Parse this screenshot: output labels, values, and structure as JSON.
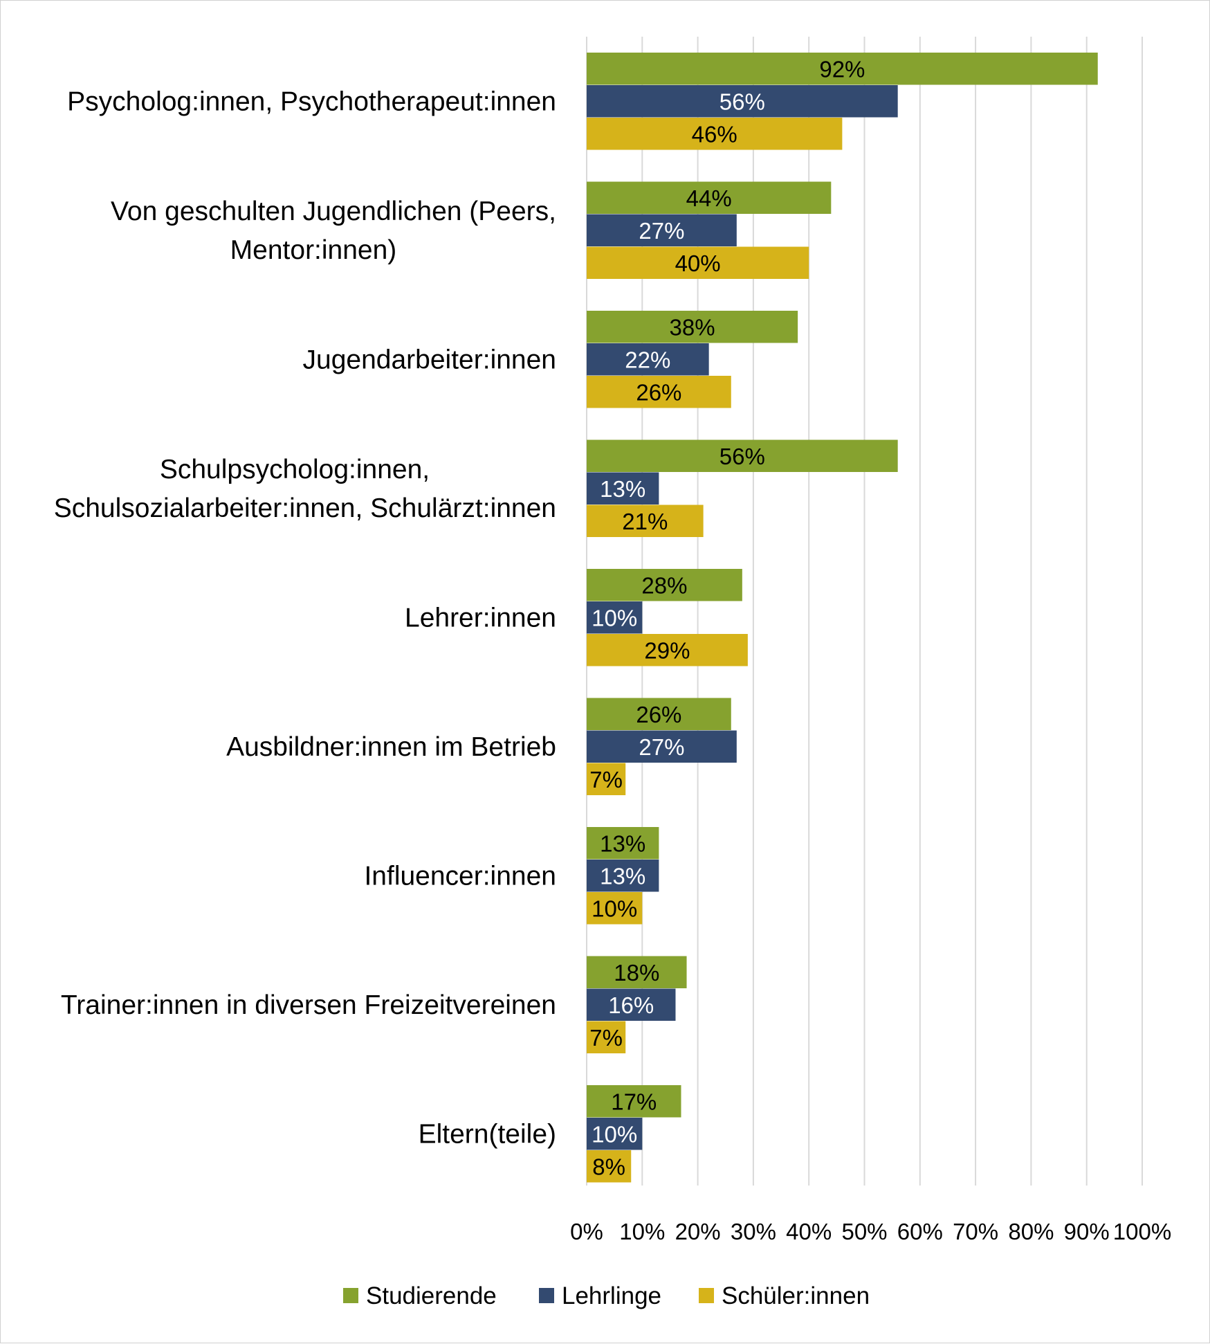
{
  "chart_data": {
    "type": "bar",
    "orientation": "horizontal",
    "categories": [
      [
        "Psycholog:innen, Psychotherapeut:innen"
      ],
      [
        "Von geschulten Jugendlichen (Peers,",
        "Mentor:innen)"
      ],
      [
        "Jugendarbeiter:innen"
      ],
      [
        "Schulpsycholog:innen,",
        "Schulsozialarbeiter:innen, Schulärzt:innen"
      ],
      [
        "Lehrer:innen"
      ],
      [
        "Ausbildner:innen im Betrieb"
      ],
      [
        "Influencer:innen"
      ],
      [
        "Trainer:innen in diversen Freizeitvereinen"
      ],
      [
        "Eltern(teile)"
      ]
    ],
    "series": [
      {
        "name": "Studierende",
        "color": "#86a22f",
        "label_color": "#000000",
        "values": [
          92,
          44,
          38,
          56,
          28,
          26,
          13,
          18,
          17
        ]
      },
      {
        "name": "Lehrlinge",
        "color": "#334a70",
        "label_color": "#ffffff",
        "values": [
          56,
          27,
          22,
          13,
          10,
          27,
          13,
          16,
          10
        ]
      },
      {
        "name": "Schüler:innen",
        "color": "#d6b31a",
        "label_color": "#000000",
        "values": [
          46,
          40,
          26,
          21,
          29,
          7,
          10,
          7,
          8
        ]
      }
    ],
    "value_suffix": "%",
    "xlim": [
      0,
      100
    ],
    "x_ticks": [
      "0%",
      "10%",
      "20%",
      "30%",
      "40%",
      "50%",
      "60%",
      "70%",
      "80%",
      "90%",
      "100%"
    ],
    "grid": true,
    "legend_position": "bottom"
  }
}
